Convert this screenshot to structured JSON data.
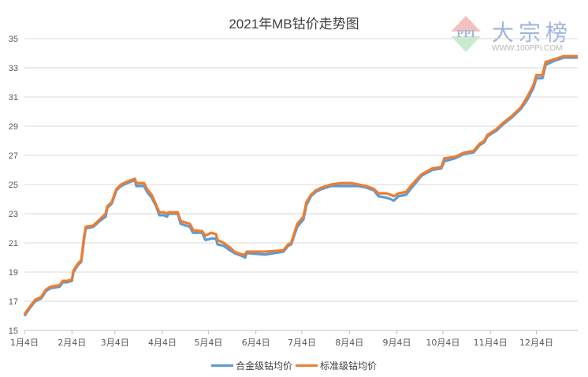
{
  "chart_data": {
    "type": "line",
    "title": "2021年MB钴价走势图",
    "xlabel": "",
    "ylabel": "",
    "ylim": [
      15,
      35
    ],
    "yticks": [
      15,
      17,
      19,
      21,
      23,
      25,
      27,
      29,
      31,
      33,
      35
    ],
    "xticks": [
      "1月4日",
      "2月4日",
      "3月4日",
      "4月4日",
      "5月4日",
      "6月4日",
      "7月4日",
      "8月4日",
      "9月4日",
      "10月4日",
      "11月4日",
      "12月4日"
    ],
    "xtick_dates": [
      "2021-01-04",
      "2021-02-04",
      "2021-03-04",
      "2021-04-04",
      "2021-05-04",
      "2021-06-04",
      "2021-07-04",
      "2021-08-04",
      "2021-09-04",
      "2021-10-04",
      "2021-11-04",
      "2021-12-04"
    ],
    "xlim": [
      "2021-01-04",
      "2021-12-31"
    ],
    "grid": "horizontal",
    "legend_position": "bottom",
    "x": [
      "2021-01-04",
      "2021-01-08",
      "2021-01-11",
      "2021-01-15",
      "2021-01-18",
      "2021-01-21",
      "2021-01-27",
      "2021-01-29",
      "2021-02-01",
      "2021-02-04",
      "2021-02-05",
      "2021-02-08",
      "2021-02-10",
      "2021-02-12",
      "2021-02-13",
      "2021-02-18",
      "2021-02-22",
      "2021-02-26",
      "2021-02-27",
      "2021-03-02",
      "2021-03-05",
      "2021-03-08",
      "2021-03-12",
      "2021-03-17",
      "2021-03-18",
      "2021-03-23",
      "2021-03-25",
      "2021-03-28",
      "2021-03-31",
      "2021-04-02",
      "2021-04-05",
      "2021-04-07",
      "2021-04-08",
      "2021-04-14",
      "2021-04-16",
      "2021-04-22",
      "2021-04-24",
      "2021-04-30",
      "2021-05-02",
      "2021-05-06",
      "2021-05-09",
      "2021-05-10",
      "2021-05-14",
      "2021-05-18",
      "2021-05-21",
      "2021-05-26",
      "2021-05-28",
      "2021-05-29",
      "2021-06-10",
      "2021-06-22",
      "2021-06-25",
      "2021-06-27",
      "2021-07-01",
      "2021-07-05",
      "2021-07-07",
      "2021-07-10",
      "2021-07-13",
      "2021-07-17",
      "2021-07-23",
      "2021-07-30",
      "2021-08-05",
      "2021-08-10",
      "2021-08-15",
      "2021-08-20",
      "2021-08-23",
      "2021-08-28",
      "2021-08-31",
      "2021-09-02",
      "2021-09-05",
      "2021-09-10",
      "2021-09-13",
      "2021-09-20",
      "2021-09-27",
      "2021-10-03",
      "2021-10-05",
      "2021-10-12",
      "2021-10-18",
      "2021-10-24",
      "2021-10-28",
      "2021-10-31",
      "2021-11-02",
      "2021-11-08",
      "2021-11-12",
      "2021-11-18",
      "2021-11-24",
      "2021-11-28",
      "2021-12-02",
      "2021-12-04",
      "2021-12-08",
      "2021-12-10",
      "2021-12-16",
      "2021-12-22",
      "2021-12-31"
    ],
    "series": [
      {
        "name": "合金级钴均价",
        "color": "#5b9bd5",
        "values": [
          16.0,
          16.6,
          17.0,
          17.2,
          17.7,
          17.9,
          18.0,
          18.3,
          18.3,
          18.4,
          19.0,
          19.5,
          19.7,
          21.3,
          22.0,
          22.1,
          22.5,
          22.8,
          23.4,
          23.7,
          24.6,
          24.9,
          25.1,
          25.3,
          24.9,
          24.9,
          24.5,
          24.1,
          23.5,
          22.9,
          22.9,
          22.8,
          23.0,
          23.0,
          22.3,
          22.1,
          21.7,
          21.7,
          21.2,
          21.3,
          21.3,
          20.9,
          20.8,
          20.5,
          20.3,
          20.1,
          20.0,
          20.3,
          20.2,
          20.4,
          20.8,
          20.9,
          22.1,
          22.6,
          23.6,
          24.2,
          24.5,
          24.7,
          24.9,
          24.9,
          24.9,
          24.9,
          24.8,
          24.6,
          24.2,
          24.1,
          24.0,
          23.9,
          24.2,
          24.3,
          24.7,
          25.6,
          26.0,
          26.1,
          26.6,
          26.8,
          27.1,
          27.2,
          27.7,
          27.9,
          28.3,
          28.7,
          29.1,
          29.6,
          30.2,
          30.8,
          31.6,
          32.3,
          32.3,
          33.2,
          33.5,
          33.7,
          33.7
        ]
      },
      {
        "name": "标准级钴均价",
        "color": "#ed7d31",
        "values": [
          16.1,
          16.7,
          17.1,
          17.3,
          17.8,
          18.0,
          18.1,
          18.4,
          18.4,
          18.5,
          19.1,
          19.6,
          19.8,
          21.5,
          22.1,
          22.2,
          22.6,
          23.0,
          23.5,
          23.8,
          24.7,
          25.0,
          25.2,
          25.4,
          25.1,
          25.1,
          24.7,
          24.3,
          23.6,
          23.1,
          23.1,
          23.0,
          23.1,
          23.1,
          22.5,
          22.3,
          21.9,
          21.8,
          21.5,
          21.7,
          21.6,
          21.2,
          21.0,
          20.7,
          20.4,
          20.2,
          20.2,
          20.4,
          20.4,
          20.5,
          20.9,
          21.0,
          22.3,
          22.8,
          23.8,
          24.3,
          24.6,
          24.8,
          25.0,
          25.1,
          25.1,
          25.0,
          24.9,
          24.7,
          24.4,
          24.4,
          24.3,
          24.2,
          24.4,
          24.5,
          24.9,
          25.7,
          26.1,
          26.2,
          26.8,
          26.9,
          27.2,
          27.3,
          27.8,
          28.0,
          28.4,
          28.8,
          29.2,
          29.7,
          30.3,
          31.0,
          31.8,
          32.5,
          32.5,
          33.4,
          33.6,
          33.8,
          33.8
        ]
      }
    ]
  },
  "watermark": {
    "brand": "大宗榜",
    "mark": "PPI",
    "url": "WWW.100PPI.COM"
  }
}
